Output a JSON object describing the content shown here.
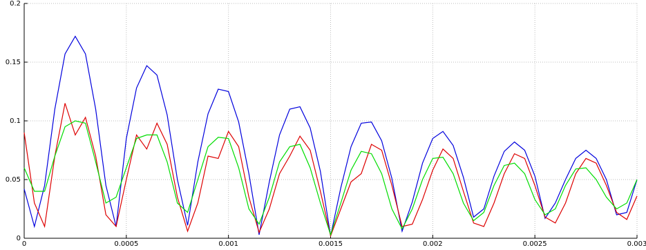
{
  "chart_data": {
    "type": "line",
    "x": [
      0,
      5e-05,
      0.0001,
      0.00015,
      0.0002,
      0.00025,
      0.0003,
      0.00035,
      0.0004,
      0.00045,
      0.0005,
      0.00055,
      0.0006,
      0.00065,
      0.0007,
      0.00075,
      0.0008,
      0.00085,
      0.0009,
      0.00095,
      0.001,
      0.00105,
      0.0011,
      0.00115,
      0.0012,
      0.00125,
      0.0013,
      0.00135,
      0.0014,
      0.00145,
      0.0015,
      0.00155,
      0.0016,
      0.00165,
      0.0017,
      0.00175,
      0.0018,
      0.00185,
      0.0019,
      0.00195,
      0.002,
      0.00205,
      0.0021,
      0.00215,
      0.0022,
      0.00225,
      0.0023,
      0.00235,
      0.0024,
      0.00245,
      0.0025,
      0.00255,
      0.0026,
      0.00265,
      0.0027,
      0.00275,
      0.0028,
      0.00285,
      0.0029,
      0.00295,
      0.003
    ],
    "series": [
      {
        "color": "#0000dd",
        "values": [
          0.042,
          0.01,
          0.045,
          0.11,
          0.157,
          0.172,
          0.157,
          0.11,
          0.045,
          0.01,
          0.085,
          0.128,
          0.147,
          0.139,
          0.105,
          0.05,
          0.011,
          0.065,
          0.106,
          0.127,
          0.125,
          0.099,
          0.055,
          0.003,
          0.048,
          0.088,
          0.11,
          0.112,
          0.094,
          0.057,
          0.002,
          0.043,
          0.078,
          0.098,
          0.099,
          0.083,
          0.051,
          0.006,
          0.031,
          0.064,
          0.085,
          0.091,
          0.079,
          0.052,
          0.018,
          0.025,
          0.053,
          0.074,
          0.082,
          0.075,
          0.053,
          0.017,
          0.03,
          0.05,
          0.068,
          0.075,
          0.068,
          0.05,
          0.02,
          0.022,
          0.05
        ]
      },
      {
        "color": "#dd0000",
        "values": [
          0.09,
          0.03,
          0.01,
          0.07,
          0.115,
          0.088,
          0.103,
          0.07,
          0.02,
          0.01,
          0.05,
          0.088,
          0.076,
          0.098,
          0.08,
          0.035,
          0.006,
          0.03,
          0.07,
          0.068,
          0.091,
          0.078,
          0.035,
          0.005,
          0.025,
          0.055,
          0.07,
          0.087,
          0.075,
          0.04,
          0.002,
          0.025,
          0.048,
          0.055,
          0.08,
          0.075,
          0.045,
          0.01,
          0.012,
          0.033,
          0.058,
          0.076,
          0.068,
          0.04,
          0.013,
          0.01,
          0.03,
          0.055,
          0.072,
          0.068,
          0.045,
          0.018,
          0.013,
          0.03,
          0.055,
          0.068,
          0.064,
          0.045,
          0.022,
          0.016,
          0.036
        ]
      },
      {
        "color": "#00dd00",
        "values": [
          0.06,
          0.04,
          0.04,
          0.07,
          0.095,
          0.1,
          0.098,
          0.065,
          0.03,
          0.035,
          0.06,
          0.085,
          0.088,
          0.088,
          0.065,
          0.03,
          0.022,
          0.05,
          0.078,
          0.086,
          0.085,
          0.06,
          0.025,
          0.012,
          0.035,
          0.065,
          0.078,
          0.08,
          0.06,
          0.03,
          0.003,
          0.03,
          0.058,
          0.074,
          0.072,
          0.055,
          0.025,
          0.008,
          0.025,
          0.05,
          0.068,
          0.069,
          0.055,
          0.03,
          0.015,
          0.022,
          0.045,
          0.062,
          0.064,
          0.055,
          0.033,
          0.02,
          0.025,
          0.045,
          0.059,
          0.06,
          0.05,
          0.035,
          0.025,
          0.03,
          0.05
        ]
      }
    ],
    "xlim": [
      0,
      0.003
    ],
    "xticks": [
      0,
      0.0005,
      0.001,
      0.0015,
      0.002,
      0.0025,
      0.003
    ],
    "ylim": [
      0,
      0.2
    ],
    "yticks": [
      0,
      0.05,
      0.1,
      0.15,
      0.2
    ],
    "grid": true
  }
}
